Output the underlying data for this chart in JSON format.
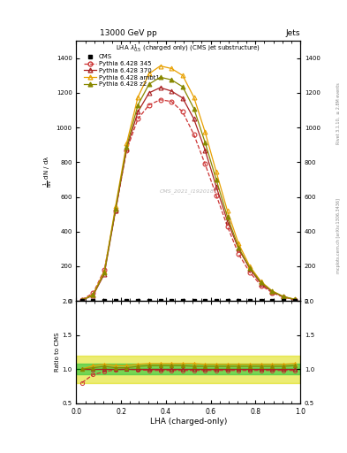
{
  "title_top": "13000 GeV pp",
  "title_right": "Jets",
  "xlabel": "LHA (charged-only)",
  "ylabel_ratio": "Ratio to CMS",
  "watermark": "CMS_2021_I1920187",
  "p6_345_x": [
    0.025,
    0.075,
    0.125,
    0.175,
    0.225,
    0.275,
    0.325,
    0.375,
    0.425,
    0.475,
    0.525,
    0.575,
    0.625,
    0.675,
    0.725,
    0.775,
    0.825,
    0.875,
    0.925,
    0.975
  ],
  "p6_345_y": [
    8,
    45,
    180,
    520,
    870,
    1050,
    1130,
    1160,
    1150,
    1090,
    960,
    790,
    610,
    430,
    270,
    165,
    90,
    48,
    22,
    7
  ],
  "p6_370_x": [
    0.025,
    0.075,
    0.125,
    0.175,
    0.225,
    0.275,
    0.325,
    0.375,
    0.425,
    0.475,
    0.525,
    0.575,
    0.625,
    0.675,
    0.725,
    0.775,
    0.825,
    0.875,
    0.925,
    0.975
  ],
  "p6_370_y": [
    4,
    32,
    155,
    520,
    880,
    1090,
    1200,
    1230,
    1210,
    1170,
    1050,
    870,
    660,
    460,
    300,
    185,
    100,
    53,
    24,
    8
  ],
  "p6_ambt1_x": [
    0.025,
    0.075,
    0.125,
    0.175,
    0.225,
    0.275,
    0.325,
    0.375,
    0.425,
    0.475,
    0.525,
    0.575,
    0.625,
    0.675,
    0.725,
    0.775,
    0.825,
    0.875,
    0.925,
    0.975
  ],
  "p6_ambt1_y": [
    4,
    38,
    170,
    545,
    910,
    1175,
    1310,
    1355,
    1340,
    1300,
    1175,
    975,
    745,
    520,
    330,
    200,
    112,
    58,
    26,
    10
  ],
  "p6_z2_x": [
    0.025,
    0.075,
    0.125,
    0.175,
    0.225,
    0.275,
    0.325,
    0.375,
    0.425,
    0.475,
    0.525,
    0.575,
    0.625,
    0.675,
    0.725,
    0.775,
    0.825,
    0.875,
    0.925,
    0.975
  ],
  "p6_z2_y": [
    4,
    35,
    162,
    530,
    890,
    1130,
    1250,
    1290,
    1275,
    1235,
    1110,
    915,
    700,
    485,
    308,
    190,
    107,
    56,
    25,
    9
  ],
  "ratio_345_y": [
    0.8,
    0.92,
    0.96,
    0.99,
    1.0,
    0.99,
    0.98,
    0.98,
    0.98,
    0.98,
    0.98,
    0.98,
    0.98,
    0.98,
    0.98,
    0.98,
    0.98,
    0.98,
    0.98,
    0.98
  ],
  "ratio_370_y": [
    1.0,
    1.0,
    1.0,
    1.0,
    1.0,
    1.0,
    1.0,
    1.0,
    1.0,
    1.0,
    1.0,
    1.0,
    1.0,
    1.0,
    1.0,
    1.0,
    1.0,
    1.0,
    1.0,
    1.0
  ],
  "ratio_ambt1_y": [
    1.0,
    1.05,
    1.07,
    1.05,
    1.05,
    1.07,
    1.08,
    1.08,
    1.08,
    1.08,
    1.08,
    1.07,
    1.07,
    1.07,
    1.07,
    1.07,
    1.07,
    1.07,
    1.07,
    1.08
  ],
  "ratio_z2_y": [
    1.0,
    1.02,
    1.04,
    1.02,
    1.02,
    1.04,
    1.05,
    1.05,
    1.05,
    1.05,
    1.04,
    1.04,
    1.04,
    1.04,
    1.04,
    1.04,
    1.04,
    1.04,
    1.04,
    1.05
  ],
  "color_345": "#cc3333",
  "color_370": "#aa2222",
  "color_ambt1": "#e8a000",
  "color_z2": "#888800",
  "color_cms": "black",
  "ylim_main": [
    0,
    1500
  ],
  "ylim_ratio": [
    0.5,
    2.0
  ],
  "xlim": [
    0.0,
    1.0
  ],
  "yticks_main": [
    0,
    200,
    400,
    600,
    800,
    1000,
    1200,
    1400
  ],
  "yticks_ratio": [
    0.5,
    1.0,
    1.5,
    2.0
  ],
  "band_green_lo": 0.92,
  "band_green_hi": 1.08,
  "band_yellow_lo": 0.8,
  "band_yellow_hi": 1.2
}
